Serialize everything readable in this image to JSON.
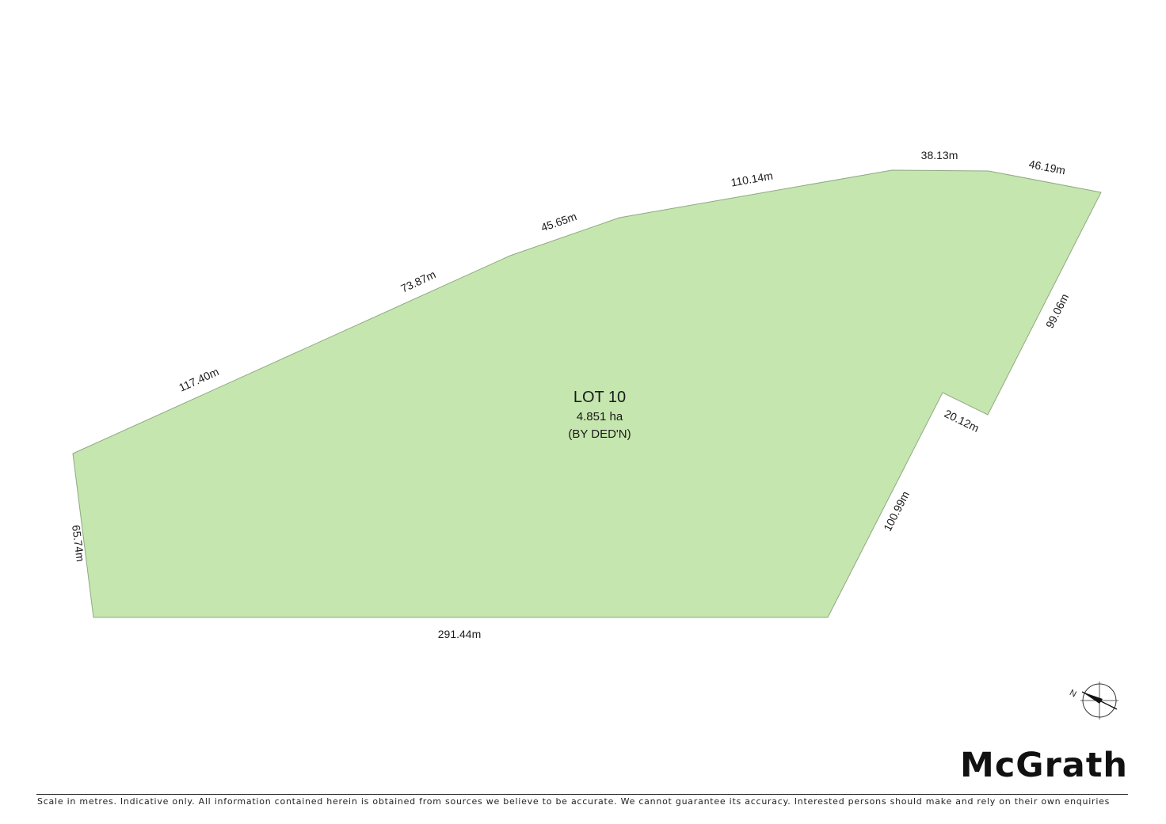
{
  "lot": {
    "title": "LOT 10",
    "area": "4.851 ha",
    "note": "(BY DED'N)"
  },
  "boundaries": [
    {
      "id": "edge-117-40",
      "label": "117.40m"
    },
    {
      "id": "edge-73-87",
      "label": "73.87m"
    },
    {
      "id": "edge-45-65",
      "label": "45.65m"
    },
    {
      "id": "edge-110-14",
      "label": "110.14m"
    },
    {
      "id": "edge-38-13",
      "label": "38.13m"
    },
    {
      "id": "edge-46-19",
      "label": "46.19m"
    },
    {
      "id": "edge-99-06",
      "label": "99.06m"
    },
    {
      "id": "edge-20-12",
      "label": "20.12m"
    },
    {
      "id": "edge-100-99",
      "label": "100.99m"
    },
    {
      "id": "edge-291-44",
      "label": "291.44m"
    },
    {
      "id": "edge-65-74",
      "label": "65.74m"
    }
  ],
  "north_arrow": {
    "label": "N"
  },
  "brand": {
    "name": "McGrath"
  },
  "footer": {
    "disclaimer": "Scale in metres. Indicative only. All information contained herein is obtained from sources we believe to be accurate. We cannot guarantee its accuracy. Interested persons should make and rely on their own enquiries"
  },
  "colors": {
    "lot_fill": "#c5e6ae",
    "lot_stroke": "#8fa982"
  }
}
